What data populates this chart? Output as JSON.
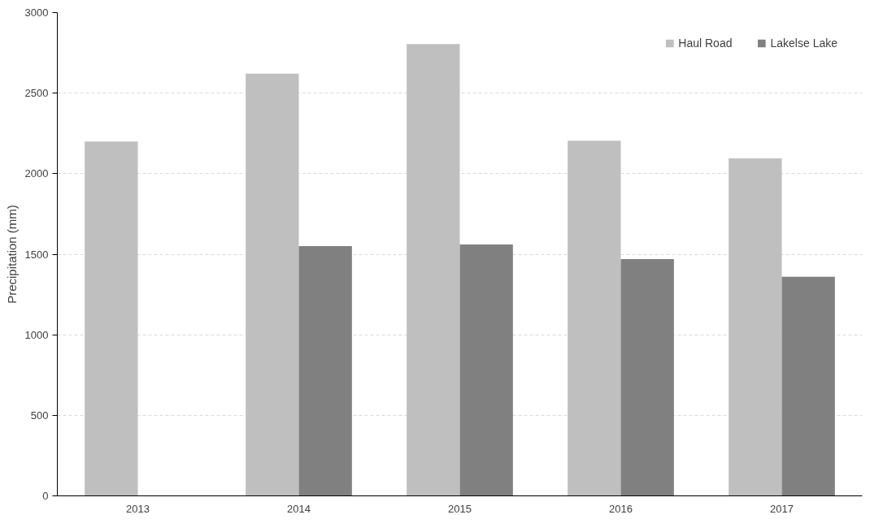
{
  "chart_data": {
    "type": "bar",
    "ylabel": "Precipitation (mm)",
    "categories": [
      "2013",
      "2014",
      "2015",
      "2016",
      "2017"
    ],
    "series": [
      {
        "name": "Haul Road",
        "color": "#bfbfbf",
        "values": [
          2200,
          2620,
          2805,
          2205,
          2095
        ]
      },
      {
        "name": "Lakelse Lake",
        "color": "#808080",
        "values": [
          null,
          1550,
          1560,
          1470,
          1360
        ]
      }
    ],
    "ylim": [
      0,
      3000
    ],
    "yticks": [
      0,
      500,
      1000,
      1500,
      2000,
      2500,
      3000
    ],
    "grid": "y",
    "legend": "top right"
  }
}
